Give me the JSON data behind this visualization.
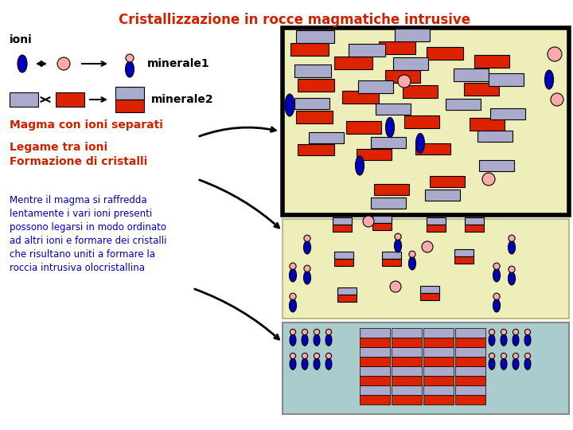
{
  "title": "Cristallizzazione in rocce magmatiche intrusive",
  "title_color": "#cc2200",
  "title_fontsize": 12,
  "bg_color": "#ffffff",
  "ioni_label": "ioni",
  "mineral1_label": "minerale1",
  "mineral2_label": "minerale2",
  "magma_label": "Magma con ioni separati",
  "legame_label": "Legame tra ioni",
  "formazione_label": "Formazione di cristalli",
  "body_text": "Mentre il magma si raffredda\nlentamente i vari ioni presenti\npossono legarsi in modo ordinato\nad altri ioni e formare dei cristalli\nche risultano uniti a formare la\nroccia intrusiva olocristallina",
  "orange_color": "#cc2200",
  "blue_color": "#0000bb",
  "pink_color": "#ffaaaa",
  "lavender_color": "#aaaacc",
  "red_color": "#dd2200",
  "box1_bg": "#eeeebb",
  "box2_bg": "#eeeebb",
  "box3_bg": "#aacccc"
}
